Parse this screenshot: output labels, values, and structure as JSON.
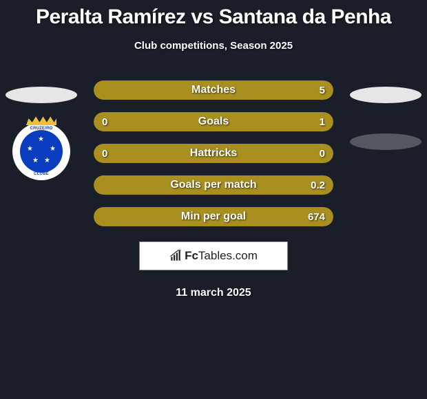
{
  "title": "Peralta Ramírez vs Santana da Penha",
  "subtitle": "Club competitions, Season 2025",
  "footer_date": "11 march 2025",
  "background_color": "#1a1e29",
  "colors": {
    "bar_olive": "#a88f1f",
    "bar_empty": "#3a3c44",
    "text": "#ffffff",
    "ellipse_light": "#e6e6e6",
    "ellipse_dark": "#54575f"
  },
  "club_logo": {
    "top_text": "CRUZEIRO",
    "bottom_text": "CLUBE",
    "outer_bg": "#ffffff",
    "inner_bg": "#0a3cbf",
    "crown_color": "#e8c23d"
  },
  "watermark": {
    "brand_bold": "Fc",
    "brand_rest": "Tables.com"
  },
  "stats": [
    {
      "label": "Matches",
      "left_value": "",
      "right_value": "5",
      "left_pct": 0,
      "right_pct": 100,
      "left_color": "#a88f1f",
      "right_color": "#a88f1f",
      "track_color": "#a88f1f"
    },
    {
      "label": "Goals",
      "left_value": "0",
      "right_value": "1",
      "left_pct": 0,
      "right_pct": 100,
      "left_color": "#a88f1f",
      "right_color": "#a88f1f",
      "track_color": "#a88f1f"
    },
    {
      "label": "Hattricks",
      "left_value": "0",
      "right_value": "0",
      "left_pct": 0,
      "right_pct": 0,
      "left_color": "#a88f1f",
      "right_color": "#a88f1f",
      "track_color": "#a88f1f"
    },
    {
      "label": "Goals per match",
      "left_value": "",
      "right_value": "0.2",
      "left_pct": 0,
      "right_pct": 100,
      "left_color": "#a88f1f",
      "right_color": "#a88f1f",
      "track_color": "#a88f1f"
    },
    {
      "label": "Min per goal",
      "left_value": "",
      "right_value": "674",
      "left_pct": 0,
      "right_pct": 100,
      "left_color": "#a88f1f",
      "right_color": "#a88f1f",
      "track_color": "#a88f1f"
    }
  ]
}
